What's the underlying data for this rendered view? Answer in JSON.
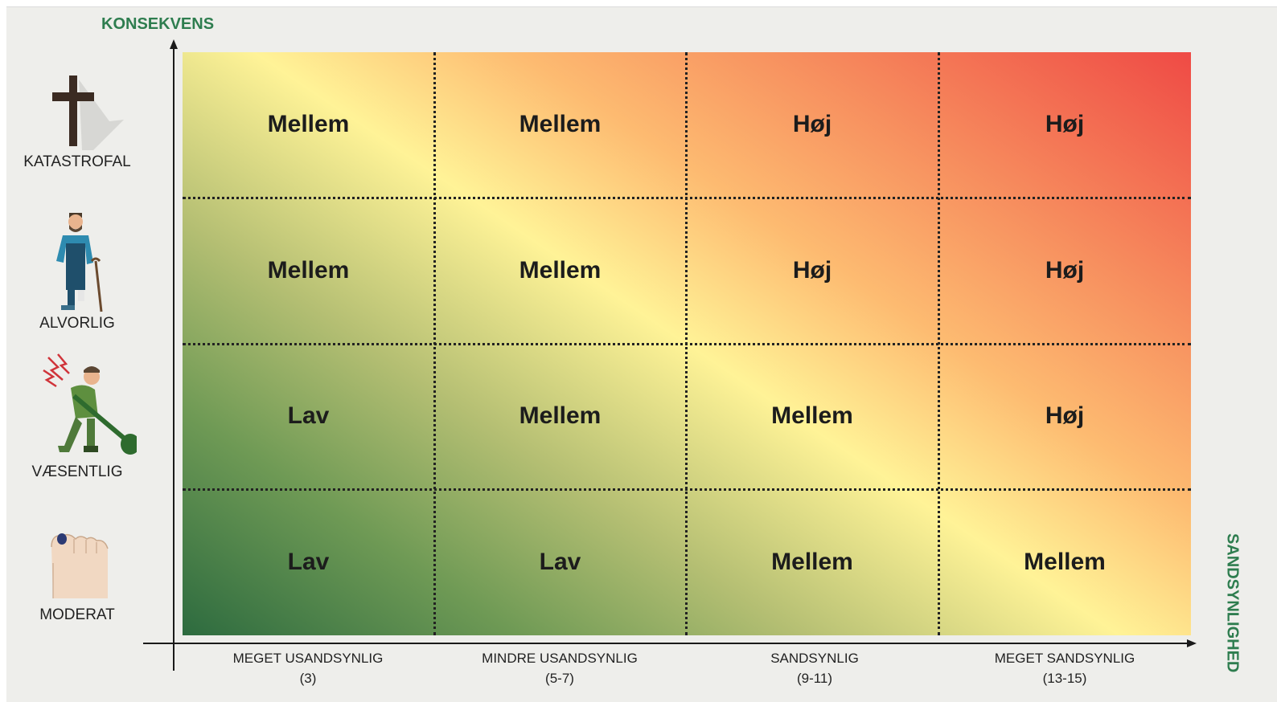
{
  "y_axis": {
    "title": "KONSEKVENS",
    "levels": [
      {
        "label": "KATASTROFAL",
        "icon": "grave-cross-icon"
      },
      {
        "label": "ALVORLIG",
        "icon": "injured-worker-cane-icon"
      },
      {
        "label": "VÆSENTLIG",
        "icon": "worker-back-pain-icon"
      },
      {
        "label": "MODERAT",
        "icon": "bruised-toe-icon"
      }
    ]
  },
  "x_axis": {
    "title": "SANDSYNLIGHED",
    "levels": [
      {
        "label": "MEGET USANDSYNLIG",
        "range": "(3)"
      },
      {
        "label": "MINDRE USANDSYNLIG",
        "range": "(5-7)"
      },
      {
        "label": "SANDSYNLIG",
        "range": "(9-11)"
      },
      {
        "label": "MEGET SANDSYNLIG",
        "range": "(13-15)"
      }
    ]
  },
  "matrix": {
    "rows": [
      [
        "Mellem",
        "Mellem",
        "Høj",
        "Høj"
      ],
      [
        "Mellem",
        "Mellem",
        "Høj",
        "Høj"
      ],
      [
        "Lav",
        "Mellem",
        "Mellem",
        "Høj"
      ],
      [
        "Lav",
        "Lav",
        "Mellem",
        "Mellem"
      ]
    ]
  },
  "colors": {
    "axis_title": "#2e7d4f",
    "low": "#2d6b3f",
    "mid": "#fff397",
    "high": "#ef4a45"
  }
}
